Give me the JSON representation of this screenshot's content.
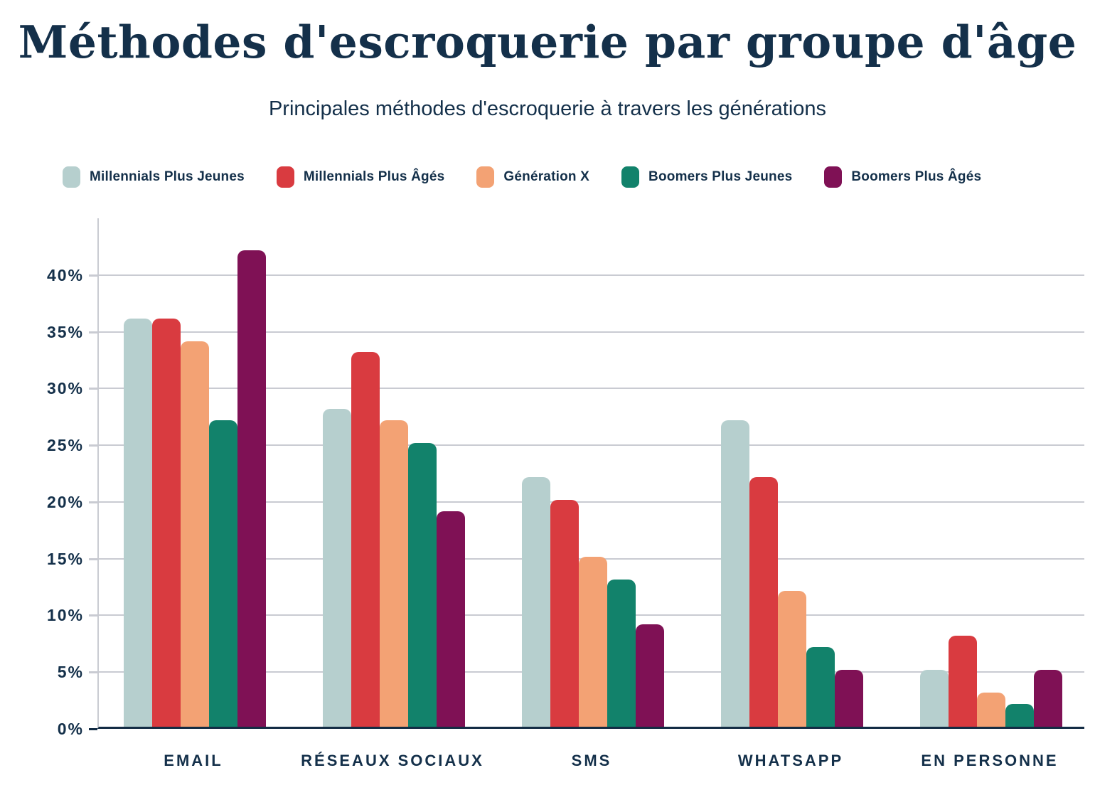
{
  "title": "Méthodes d'escroquerie par groupe d'âge",
  "subtitle": "Principales méthodes d'escroquerie à travers les générations",
  "colors": {
    "text": "#14304a",
    "background": "#ffffff",
    "gridline": "#c9cbd2",
    "baseline": "#132c44"
  },
  "chart_data": {
    "type": "bar",
    "title": "Méthodes d'escroquerie par groupe d'âge",
    "subtitle": "Principales méthodes d'escroquerie à travers les générations",
    "categories": [
      "EMAIL",
      "RÉSEAUX SOCIAUX",
      "SMS",
      "WHATSAPP",
      "EN PERSONNE"
    ],
    "series": [
      {
        "name": "Millennials Plus Jeunes",
        "color": "#b6cfce",
        "values": [
          36,
          28,
          22,
          27,
          5
        ]
      },
      {
        "name": "Millennials Plus Âgés",
        "color": "#d93b40",
        "values": [
          36,
          33,
          20,
          22,
          8
        ]
      },
      {
        "name": "Génération X",
        "color": "#f3a274",
        "values": [
          34,
          27,
          15,
          12,
          3
        ]
      },
      {
        "name": "Boomers Plus Jeunes",
        "color": "#12826b",
        "values": [
          27,
          25,
          13,
          7,
          2
        ]
      },
      {
        "name": "Boomers Plus Âgés",
        "color": "#7f1155",
        "values": [
          42,
          19,
          9,
          5,
          5
        ]
      }
    ],
    "xlabel": "",
    "ylabel": "",
    "unit": "%",
    "ylim": [
      0,
      45
    ],
    "y_tick_step": 5,
    "y_tick_labels": [
      "0%",
      "5%",
      "10%",
      "15%",
      "20%",
      "25%",
      "30%",
      "35%",
      "40%"
    ],
    "grid": "horizontal",
    "legend_position": "top-left"
  }
}
